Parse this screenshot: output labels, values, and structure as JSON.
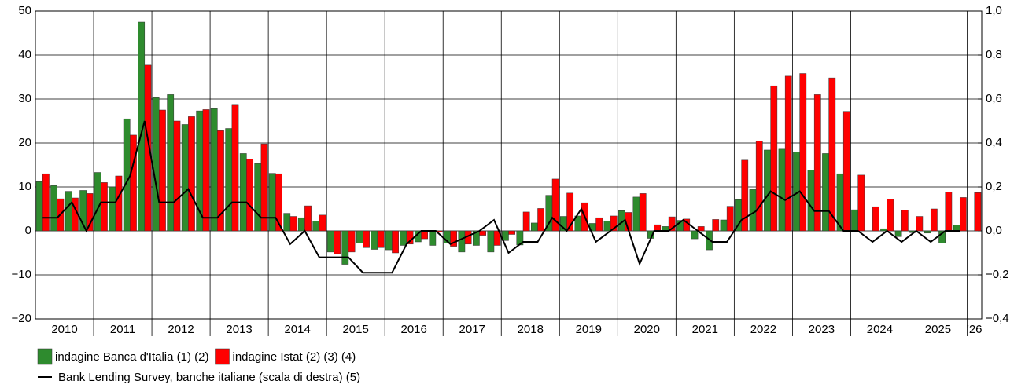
{
  "chart_data": {
    "type": "bar",
    "categories": [
      "2010",
      null,
      null,
      null,
      "2011",
      null,
      null,
      null,
      "2012",
      null,
      null,
      null,
      "2013",
      null,
      null,
      null,
      "2014",
      null,
      null,
      null,
      "2015",
      null,
      null,
      null,
      "2016",
      null,
      null,
      null,
      "2017",
      null,
      null,
      null,
      "2018",
      null,
      null,
      null,
      "2019",
      null,
      null,
      null,
      "2020",
      null,
      null,
      null,
      "2021",
      null,
      null,
      null,
      "2022",
      null,
      null,
      null,
      "2023",
      null,
      null,
      null,
      "2024",
      null,
      null,
      null,
      "2025",
      null,
      null,
      null,
      "'26"
    ],
    "series": [
      {
        "name": "indagine Banca d'Italia (1) (2)",
        "color": "#2e8b2e",
        "values": [
          11.2,
          10.3,
          9,
          9.2,
          13.3,
          10,
          25.5,
          47.5,
          30.3,
          31,
          24.2,
          27.3,
          27.8,
          23.3,
          17.6,
          15.3,
          13.1,
          4,
          3,
          2.2,
          -4.8,
          -7.6,
          -2.8,
          -4.2,
          -4.3,
          -3.3,
          -2.5,
          -3.3,
          -2.8,
          -4.8,
          -3.3,
          -4.8,
          -2.2,
          -3.2,
          1.8,
          8.1,
          3.3,
          3.4,
          1.7,
          2.2,
          4.6,
          7.7,
          -1.7,
          1,
          2.4,
          -1.8,
          -4.3,
          2.5,
          7.1,
          9.4,
          18.4,
          18.6,
          17.9,
          13.8,
          17.6,
          13,
          4.8,
          0,
          0.5,
          -1.3,
          -0.4,
          -0.5,
          -2.8,
          1.3,
          null
        ]
      },
      {
        "name": "indagine Istat (2) (3) (4)",
        "color": "#ff0000",
        "values": [
          13,
          7.3,
          7.5,
          8.5,
          11,
          12.5,
          21.8,
          37.7,
          27.5,
          25,
          26,
          27.6,
          22.8,
          28.6,
          16.3,
          19.8,
          13,
          3.3,
          5.7,
          3.6,
          -5.2,
          -4.8,
          -3.8,
          -3.8,
          -5,
          -3,
          -1.8,
          -0.3,
          -3.5,
          -3,
          -1,
          -3.3,
          -0.8,
          4.3,
          5.1,
          11.8,
          8.6,
          6.4,
          3,
          3.4,
          4.2,
          8.5,
          1.4,
          3.2,
          2.7,
          1,
          2.6,
          5.6,
          16.1,
          20.4,
          33,
          35.2,
          35.8,
          31,
          34.8,
          27.2,
          12.7,
          5.5,
          7.2,
          4.7,
          3.3,
          5,
          8.8,
          7.6,
          8.7
        ]
      },
      {
        "name": "Bank Lending Survey, banche italiane (scala di destra) (5)",
        "type": "line",
        "axis": "y2",
        "color": "#000000",
        "values": [
          0.06,
          0.06,
          0.13,
          0,
          0.13,
          0.13,
          0.25,
          0.5,
          0.13,
          0.13,
          0.19,
          0.06,
          0.06,
          0.13,
          0.13,
          0.06,
          0.06,
          -0.06,
          0,
          -0.12,
          -0.12,
          -0.12,
          -0.19,
          -0.19,
          -0.19,
          -0.06,
          0,
          0,
          -0.06,
          -0.03,
          0,
          0.05,
          -0.1,
          -0.05,
          -0.05,
          0.06,
          0,
          0.1,
          -0.05,
          0,
          0.05,
          -0.15,
          0,
          0,
          0.05,
          0,
          -0.05,
          -0.05,
          0.05,
          0.09,
          0.18,
          0.14,
          0.18,
          0.09,
          0.09,
          0,
          0,
          -0.05,
          0,
          -0.05,
          0,
          -0.05,
          0,
          0,
          null
        ]
      }
    ],
    "ylim": [
      -20,
      50
    ],
    "yticks": [
      {
        "value": -20,
        "label": "−20"
      },
      {
        "value": -10,
        "label": "−10"
      },
      0,
      10,
      20,
      30,
      40,
      50
    ],
    "y2lim": [
      -0.4,
      1.0
    ],
    "y2ticks": [
      {
        "value": -0.4,
        "label": "−0,4"
      },
      {
        "value": -0.2,
        "label": "−0,2"
      },
      {
        "value": 0,
        "label": "0,0"
      },
      {
        "value": 0.2,
        "label": "0,2"
      },
      {
        "value": 0.4,
        "label": "0,4"
      },
      {
        "value": 0.6,
        "label": "0,6"
      },
      {
        "value": 0.8,
        "label": "0,8"
      },
      {
        "value": 1.0,
        "label": "1,0"
      }
    ],
    "grid": true
  }
}
